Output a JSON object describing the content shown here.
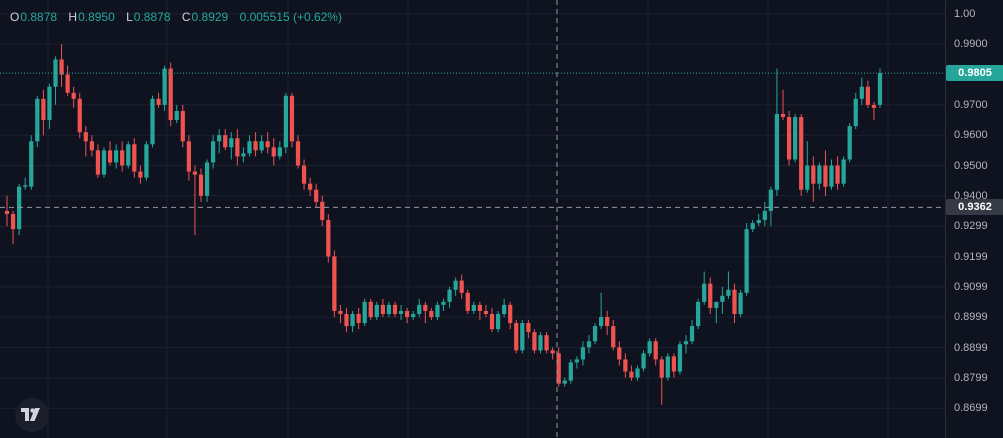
{
  "legend": {
    "open_key": "O",
    "open": "0.8878",
    "high_key": "H",
    "high": "0.8950",
    "low_key": "L",
    "low": "0.8878",
    "close_key": "C",
    "close": "0.8929",
    "change": "0.005515 (+0.62%)"
  },
  "price_tags": {
    "last": "0.9805",
    "crosshair": "0.9362"
  },
  "colors": {
    "background": "#0f1320",
    "grid": "#1c2030",
    "up": "#26a69a",
    "down": "#ef5350",
    "crosshair": "#9598a1",
    "last_price_line": "#26a69a",
    "crosshair_tag": "#363a45"
  },
  "logo_icon": "tradingview-logo-icon",
  "chart_data": {
    "type": "candlestick",
    "ylim": [
      0.855,
      1.0
    ],
    "grid": true,
    "y_ticks": [
      "1.00",
      "0.9900",
      "0.9805",
      "0.9700",
      "0.9600",
      "0.9500",
      "0.9400",
      "0.9362",
      "0.9299",
      "0.9199",
      "0.9099",
      "0.8999",
      "0.8899",
      "0.8799",
      "0.8699"
    ],
    "last_price": 0.9805,
    "crosshair_price": 0.9362,
    "candles": [
      [
        0.935,
        0.94,
        0.93,
        0.934
      ],
      [
        0.934,
        0.935,
        0.924,
        0.929
      ],
      [
        0.929,
        0.944,
        0.927,
        0.943
      ],
      [
        0.943,
        0.946,
        0.942,
        0.9435
      ],
      [
        0.943,
        0.96,
        0.942,
        0.958
      ],
      [
        0.958,
        0.973,
        0.956,
        0.972
      ],
      [
        0.972,
        0.975,
        0.96,
        0.965
      ],
      [
        0.965,
        0.977,
        0.962,
        0.976
      ],
      [
        0.976,
        0.986,
        0.97,
        0.985
      ],
      [
        0.985,
        0.99,
        0.976,
        0.98
      ],
      [
        0.98,
        0.983,
        0.973,
        0.974
      ],
      [
        0.974,
        0.976,
        0.969,
        0.972
      ],
      [
        0.972,
        0.974,
        0.959,
        0.961
      ],
      [
        0.961,
        0.963,
        0.953,
        0.958
      ],
      [
        0.958,
        0.96,
        0.953,
        0.955
      ],
      [
        0.955,
        0.957,
        0.946,
        0.947
      ],
      [
        0.947,
        0.956,
        0.946,
        0.955
      ],
      [
        0.955,
        0.958,
        0.95,
        0.951
      ],
      [
        0.951,
        0.957,
        0.949,
        0.955
      ],
      [
        0.955,
        0.958,
        0.948,
        0.95
      ],
      [
        0.95,
        0.958,
        0.949,
        0.957
      ],
      [
        0.957,
        0.959,
        0.946,
        0.948
      ],
      [
        0.948,
        0.95,
        0.944,
        0.946
      ],
      [
        0.946,
        0.958,
        0.945,
        0.957
      ],
      [
        0.957,
        0.973,
        0.956,
        0.972
      ],
      [
        0.972,
        0.974,
        0.969,
        0.97
      ],
      [
        0.97,
        0.983,
        0.968,
        0.982
      ],
      [
        0.982,
        0.984,
        0.963,
        0.965
      ],
      [
        0.965,
        0.97,
        0.964,
        0.968
      ],
      [
        0.968,
        0.97,
        0.956,
        0.958
      ],
      [
        0.958,
        0.96,
        0.945,
        0.948
      ],
      [
        0.948,
        0.95,
        0.927,
        0.947
      ],
      [
        0.947,
        0.949,
        0.938,
        0.94
      ],
      [
        0.94,
        0.952,
        0.938,
        0.951
      ],
      [
        0.951,
        0.96,
        0.949,
        0.958
      ],
      [
        0.958,
        0.962,
        0.954,
        0.96
      ],
      [
        0.96,
        0.962,
        0.955,
        0.956
      ],
      [
        0.956,
        0.961,
        0.952,
        0.959
      ],
      [
        0.959,
        0.962,
        0.95,
        0.953
      ],
      [
        0.953,
        0.956,
        0.951,
        0.954
      ],
      [
        0.954,
        0.96,
        0.953,
        0.958
      ],
      [
        0.958,
        0.961,
        0.953,
        0.955
      ],
      [
        0.955,
        0.96,
        0.954,
        0.958
      ],
      [
        0.958,
        0.961,
        0.954,
        0.956
      ],
      [
        0.956,
        0.959,
        0.95,
        0.953
      ],
      [
        0.953,
        0.958,
        0.952,
        0.956
      ],
      [
        0.956,
        0.974,
        0.954,
        0.973
      ],
      [
        0.973,
        0.974,
        0.956,
        0.958
      ],
      [
        0.958,
        0.96,
        0.949,
        0.95
      ],
      [
        0.95,
        0.952,
        0.942,
        0.944
      ],
      [
        0.944,
        0.946,
        0.94,
        0.942
      ],
      [
        0.942,
        0.944,
        0.936,
        0.938
      ],
      [
        0.938,
        0.94,
        0.93,
        0.932
      ],
      [
        0.932,
        0.934,
        0.918,
        0.92
      ],
      [
        0.92,
        0.922,
        0.9,
        0.902
      ],
      [
        0.902,
        0.904,
        0.898,
        0.901
      ],
      [
        0.901,
        0.903,
        0.895,
        0.897
      ],
      [
        0.897,
        0.902,
        0.895,
        0.901
      ],
      [
        0.901,
        0.903,
        0.896,
        0.898
      ],
      [
        0.898,
        0.906,
        0.897,
        0.905
      ],
      [
        0.905,
        0.906,
        0.899,
        0.9
      ],
      [
        0.9,
        0.905,
        0.899,
        0.904
      ],
      [
        0.904,
        0.906,
        0.9,
        0.901
      ],
      [
        0.901,
        0.905,
        0.9,
        0.904
      ],
      [
        0.904,
        0.905,
        0.9,
        0.901
      ],
      [
        0.901,
        0.904,
        0.899,
        0.902
      ],
      [
        0.902,
        0.903,
        0.898,
        0.9
      ],
      [
        0.9,
        0.902,
        0.899,
        0.901
      ],
      [
        0.901,
        0.906,
        0.9,
        0.904
      ],
      [
        0.904,
        0.905,
        0.898,
        0.902
      ],
      [
        0.902,
        0.903,
        0.899,
        0.9
      ],
      [
        0.9,
        0.905,
        0.899,
        0.904
      ],
      [
        0.904,
        0.906,
        0.902,
        0.905
      ],
      [
        0.905,
        0.91,
        0.903,
        0.909
      ],
      [
        0.909,
        0.913,
        0.907,
        0.912
      ],
      [
        0.912,
        0.914,
        0.906,
        0.908
      ],
      [
        0.908,
        0.909,
        0.901,
        0.902
      ],
      [
        0.902,
        0.905,
        0.901,
        0.904
      ],
      [
        0.904,
        0.905,
        0.899,
        0.902
      ],
      [
        0.902,
        0.904,
        0.9,
        0.901
      ],
      [
        0.901,
        0.903,
        0.895,
        0.896
      ],
      [
        0.896,
        0.902,
        0.895,
        0.901
      ],
      [
        0.901,
        0.906,
        0.9,
        0.904
      ],
      [
        0.904,
        0.905,
        0.896,
        0.898
      ],
      [
        0.898,
        0.899,
        0.888,
        0.889
      ],
      [
        0.889,
        0.899,
        0.888,
        0.898
      ],
      [
        0.898,
        0.899,
        0.893,
        0.895
      ],
      [
        0.895,
        0.896,
        0.888,
        0.889
      ],
      [
        0.889,
        0.895,
        0.888,
        0.894
      ],
      [
        0.894,
        0.895,
        0.888,
        0.889
      ],
      [
        0.889,
        0.89,
        0.886,
        0.888
      ],
      [
        0.888,
        0.89,
        0.877,
        0.878
      ],
      [
        0.878,
        0.88,
        0.877,
        0.879
      ],
      [
        0.879,
        0.886,
        0.878,
        0.885
      ],
      [
        0.885,
        0.887,
        0.883,
        0.886
      ],
      [
        0.886,
        0.892,
        0.884,
        0.89
      ],
      [
        0.89,
        0.894,
        0.888,
        0.892
      ],
      [
        0.892,
        0.898,
        0.891,
        0.897
      ],
      [
        0.897,
        0.908,
        0.896,
        0.9
      ],
      [
        0.9,
        0.902,
        0.894,
        0.897
      ],
      [
        0.897,
        0.899,
        0.889,
        0.89
      ],
      [
        0.89,
        0.892,
        0.884,
        0.886
      ],
      [
        0.886,
        0.888,
        0.88,
        0.882
      ],
      [
        0.882,
        0.884,
        0.879,
        0.88
      ],
      [
        0.88,
        0.884,
        0.879,
        0.883
      ],
      [
        0.883,
        0.889,
        0.882,
        0.888
      ],
      [
        0.888,
        0.893,
        0.887,
        0.892
      ],
      [
        0.892,
        0.893,
        0.884,
        0.886
      ],
      [
        0.886,
        0.887,
        0.871,
        0.88
      ],
      [
        0.88,
        0.888,
        0.879,
        0.887
      ],
      [
        0.887,
        0.888,
        0.88,
        0.882
      ],
      [
        0.882,
        0.892,
        0.881,
        0.891
      ],
      [
        0.891,
        0.894,
        0.888,
        0.892
      ],
      [
        0.892,
        0.899,
        0.891,
        0.897
      ],
      [
        0.897,
        0.906,
        0.896,
        0.905
      ],
      [
        0.905,
        0.915,
        0.904,
        0.911
      ],
      [
        0.911,
        0.913,
        0.901,
        0.903
      ],
      [
        0.903,
        0.905,
        0.898,
        0.905
      ],
      [
        0.905,
        0.91,
        0.901,
        0.907
      ],
      [
        0.907,
        0.915,
        0.906,
        0.909
      ],
      [
        0.909,
        0.911,
        0.898,
        0.901
      ],
      [
        0.901,
        0.909,
        0.9,
        0.908
      ],
      [
        0.908,
        0.931,
        0.907,
        0.929
      ],
      [
        0.929,
        0.932,
        0.928,
        0.931
      ],
      [
        0.931,
        0.934,
        0.93,
        0.932
      ],
      [
        0.932,
        0.938,
        0.93,
        0.935
      ],
      [
        0.935,
        0.943,
        0.93,
        0.942
      ],
      [
        0.942,
        0.982,
        0.94,
        0.967
      ],
      [
        0.967,
        0.975,
        0.965,
        0.966
      ],
      [
        0.966,
        0.968,
        0.95,
        0.952
      ],
      [
        0.952,
        0.967,
        0.951,
        0.966
      ],
      [
        0.966,
        0.967,
        0.94,
        0.942
      ],
      [
        0.942,
        0.958,
        0.941,
        0.95
      ],
      [
        0.95,
        0.953,
        0.938,
        0.944
      ],
      [
        0.944,
        0.951,
        0.942,
        0.95
      ],
      [
        0.95,
        0.955,
        0.94,
        0.943
      ],
      [
        0.943,
        0.952,
        0.942,
        0.95
      ],
      [
        0.95,
        0.953,
        0.942,
        0.944
      ],
      [
        0.944,
        0.953,
        0.943,
        0.952
      ],
      [
        0.952,
        0.964,
        0.951,
        0.963
      ],
      [
        0.963,
        0.974,
        0.962,
        0.972
      ],
      [
        0.972,
        0.979,
        0.97,
        0.976
      ],
      [
        0.976,
        0.978,
        0.969,
        0.97
      ],
      [
        0.97,
        0.971,
        0.965,
        0.969
      ],
      [
        0.97,
        0.982,
        0.969,
        0.9805
      ]
    ]
  }
}
